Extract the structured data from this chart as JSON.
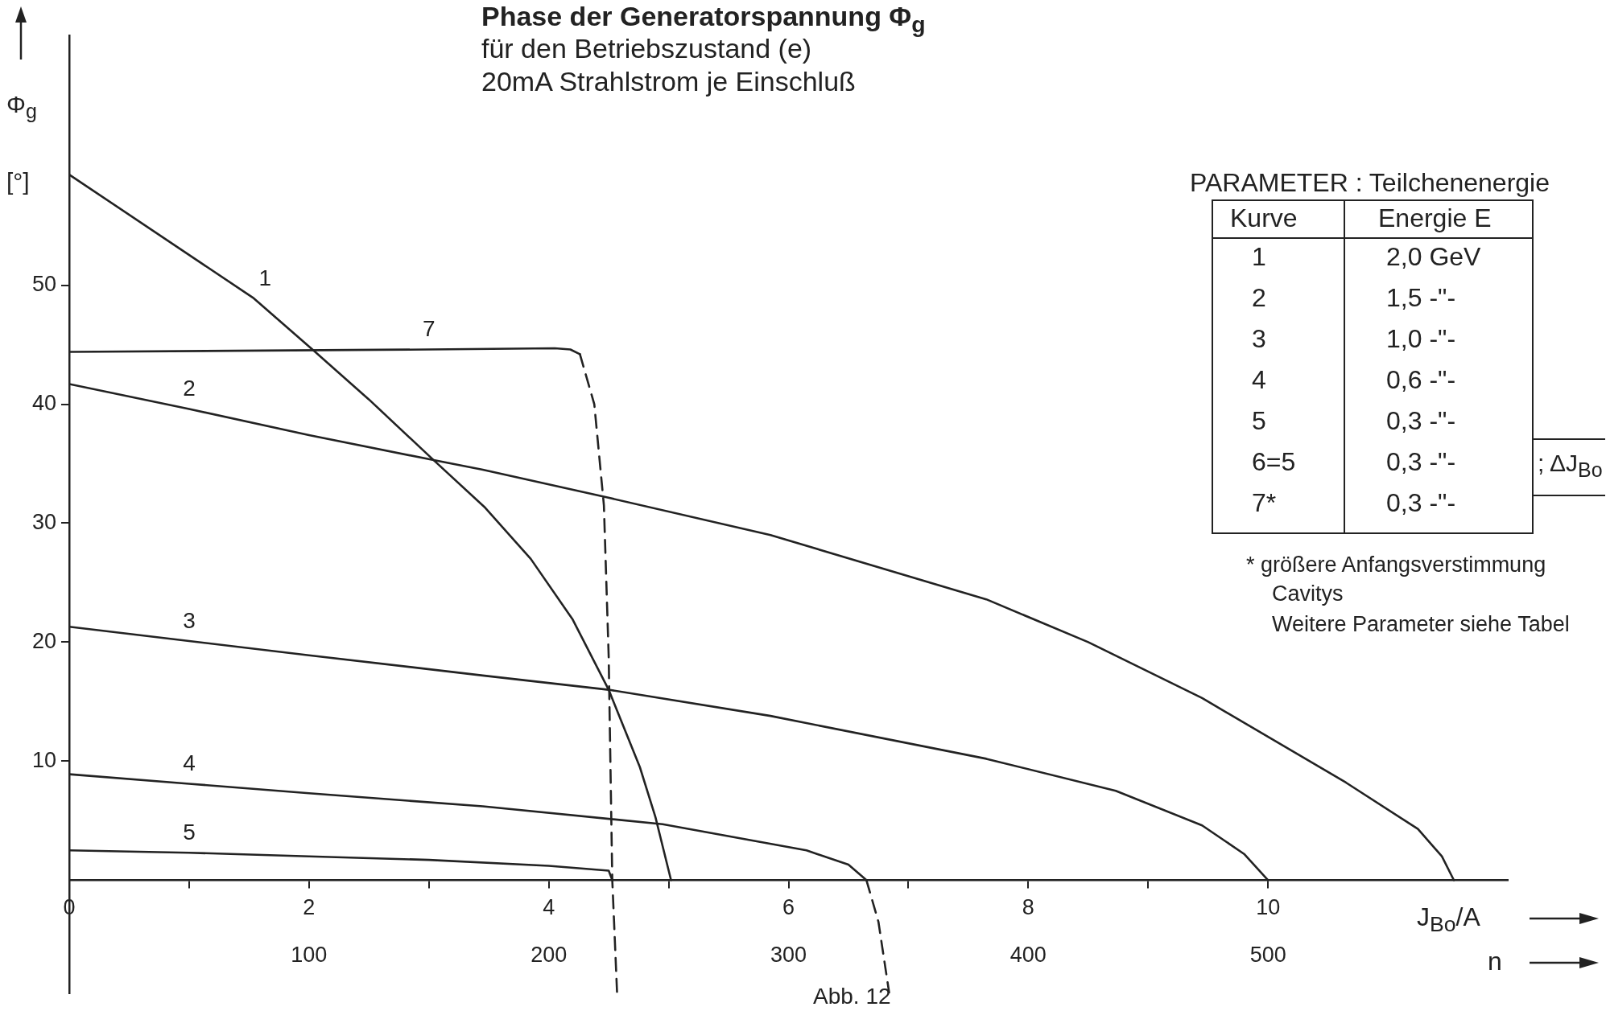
{
  "chart_data": {
    "type": "line",
    "title": "Phase der Generatorspannung Φ$_{g}$",
    "subtitle": "für den Betriebszustand (e)\n20mA Strahlstrom je Einschluß",
    "xlabel": "J$_{Bo}$/A",
    "x2label": "n",
    "ylabel": "Φ$_{g}$ [°]",
    "xlim": [
      0,
      12
    ],
    "xticks": [
      0,
      {
        "value": 1,
        "label": null
      },
      2,
      {
        "value": 3,
        "label": null
      },
      4,
      {
        "value": 5,
        "label": null
      },
      6,
      {
        "value": 7,
        "label": null
      },
      8,
      {
        "value": 9,
        "label": null
      },
      10
    ],
    "x2lim": [
      0,
      600
    ],
    "x2ticks": [
      100,
      200,
      300,
      400,
      500
    ],
    "ylim": [
      -9.5,
      71
    ],
    "yticks": [
      10,
      20,
      30,
      40,
      50
    ],
    "grid": false,
    "series": [
      {
        "name": "1",
        "color": "#222222",
        "x": [
          0,
          1.54,
          2.04,
          2.5,
          3.04,
          3.47,
          3.85,
          4.2,
          4.5,
          4.76,
          4.89,
          5.02
        ],
        "values": [
          59.3,
          48.9,
          44.5,
          40.4,
          35.3,
          31.3,
          27.0,
          21.9,
          16.0,
          9.5,
          5.3,
          0
        ]
      },
      {
        "name": "7",
        "color": "#222222",
        "x": [
          0,
          3.0,
          4.05,
          4.18,
          4.26
        ],
        "values": [
          44.4,
          44.6,
          44.7,
          44.6,
          44.2
        ]
      },
      {
        "color": "#222222",
        "line_style": "dashed",
        "x": [
          4.26,
          4.38,
          4.46,
          4.5,
          4.53,
          4.57
        ],
        "values": [
          44.2,
          40,
          31.5,
          18.8,
          0,
          -9.5
        ]
      },
      {
        "name": "2",
        "color": "#222222",
        "x": [
          0,
          1.0,
          2.0,
          3.04,
          3.45,
          4.43,
          5.85,
          7.65,
          8.5,
          9.45,
          10.65,
          11.25,
          11.45,
          11.55
        ],
        "values": [
          41.7,
          39.6,
          37.4,
          35.3,
          34.5,
          32.3,
          29.0,
          23.6,
          20.0,
          15.3,
          8.2,
          4.3,
          2.0,
          0
        ]
      },
      {
        "name": "3",
        "color": "#222222",
        "x": [
          0,
          1.0,
          2.0,
          3.45,
          4.5,
          5.85,
          7.65,
          8.73,
          9.45,
          9.8,
          10.0
        ],
        "values": [
          21.3,
          20.1,
          18.9,
          17.2,
          16.0,
          13.8,
          10.2,
          7.5,
          4.6,
          2.2,
          0
        ]
      },
      {
        "name": "4",
        "color": "#222222",
        "x": [
          0,
          1.0,
          2.0,
          3.45,
          4.95,
          6.15,
          6.5,
          6.65
        ],
        "values": [
          8.9,
          8.1,
          7.3,
          6.2,
          4.7,
          2.5,
          1.3,
          0
        ]
      },
      {
        "color": "#222222",
        "line_style": "dashed",
        "x": [
          6.65,
          6.75,
          6.84
        ],
        "values": [
          0,
          -3.5,
          -9.5
        ]
      },
      {
        "name": "5",
        "color": "#222222",
        "x": [
          0,
          1.0,
          2.0,
          3.0,
          4.0,
          4.5,
          4.53
        ],
        "values": [
          2.5,
          2.3,
          2.0,
          1.7,
          1.2,
          0.8,
          0
        ]
      }
    ],
    "annotations": [
      "PARAMETER : Teilchenenergie",
      "Kurve",
      "Energie E",
      "1",
      "2,0 GeV",
      "2",
      "1,5 -\"-",
      "3",
      "1,0 -\"-",
      "4",
      "0,6 -\"-",
      "5",
      "0,3 -\"-",
      "6=5",
      "0,3 -\"-",
      "7*",
      "0,3 -\"-",
      "; ΔJ$_{Bo}$",
      "* größere Anfangsverstimmung",
      "Cavitys",
      "Weitere Parameter siehe Tabel",
      "Abb. 12"
    ]
  }
}
